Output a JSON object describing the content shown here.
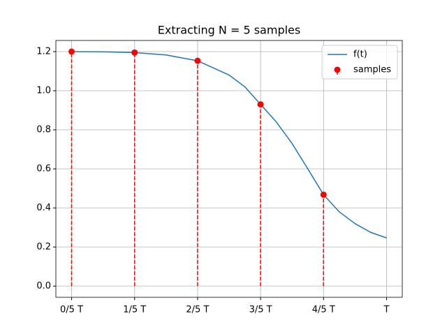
{
  "chart_data": {
    "type": "line",
    "title": "Extracting N = 5 samples",
    "xlim": [
      -0.05,
      1.05
    ],
    "xticks": [
      {
        "value": 0,
        "label": "0/5 T"
      },
      {
        "value": 0.2,
        "label": "1/5 T"
      },
      {
        "value": 0.4,
        "label": "2/5 T"
      },
      {
        "value": 0.6,
        "label": "3/5 T"
      },
      {
        "value": 0.8,
        "label": "4/5 T"
      },
      {
        "value": 1,
        "label": "T"
      }
    ],
    "ylim": [
      -0.057,
      1.257
    ],
    "yticks": [
      {
        "value": 0,
        "label": "0.0"
      },
      {
        "value": 0.2,
        "label": "0.2"
      },
      {
        "value": 0.4,
        "label": "0.4"
      },
      {
        "value": 0.6,
        "label": "0.6"
      },
      {
        "value": 0.8,
        "label": "0.8"
      },
      {
        "value": 1,
        "label": "1.0"
      },
      {
        "value": 1.2,
        "label": "1.2"
      }
    ],
    "grid": true,
    "legend": "upper right",
    "series": [
      {
        "name": "f(t)",
        "type": "line",
        "color": "#1f77b4",
        "x": [
          0,
          0.1,
          0.2,
          0.3,
          0.4,
          0.5,
          0.55,
          0.6,
          0.65,
          0.7,
          0.75,
          0.8,
          0.85,
          0.9,
          0.95,
          1
        ],
        "values": [
          1.2,
          1.199,
          1.195,
          1.183,
          1.153,
          1.08,
          1.02,
          0.93,
          0.84,
          0.73,
          0.6,
          0.468,
          0.38,
          0.32,
          0.275,
          0.247
        ]
      },
      {
        "name": "samples",
        "type": "stem",
        "color": "#ff0000",
        "x": [
          0,
          0.2,
          0.4,
          0.6,
          0.8
        ],
        "values": [
          1.2,
          1.195,
          1.153,
          0.93,
          0.468
        ]
      }
    ]
  }
}
